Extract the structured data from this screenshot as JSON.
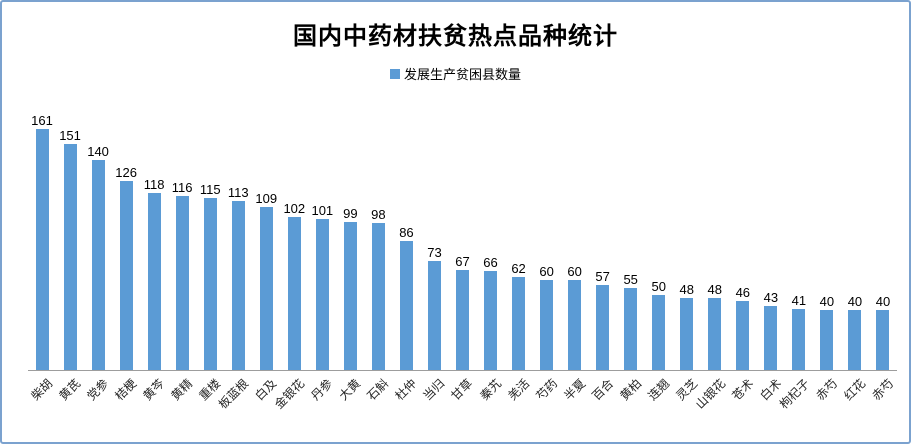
{
  "chart_data": {
    "type": "bar",
    "title": "国内中药材扶贫热点品种统计",
    "legend": [
      {
        "label": "发展生产贫困县数量",
        "color": "#5b9bd5"
      }
    ],
    "legend_position": "top-center",
    "categories": [
      "柴胡",
      "黄芪",
      "党参",
      "桔梗",
      "黄芩",
      "黄精",
      "重楼",
      "板蓝根",
      "白及",
      "金银花",
      "丹参",
      "大黄",
      "石斛",
      "杜仲",
      "当归",
      "甘草",
      "秦艽",
      "羌活",
      "芍药",
      "半夏",
      "百合",
      "黄柏",
      "连翘",
      "灵芝",
      "山银花",
      "苍术",
      "白术",
      "枸杞子",
      "赤芍",
      "红花",
      "赤芍"
    ],
    "values": [
      161,
      151,
      140,
      126,
      118,
      116,
      115,
      113,
      109,
      102,
      101,
      99,
      98,
      86,
      73,
      67,
      66,
      62,
      60,
      60,
      57,
      55,
      50,
      48,
      48,
      46,
      43,
      41,
      40,
      40,
      40
    ],
    "series_name": "发展生产贫困县数量",
    "xlabel": "",
    "ylabel": "",
    "ylim": [
      0,
      170
    ],
    "grid": false,
    "data_labels": true,
    "x_tick_rotation": 45,
    "bar_color": "#5b9bd5",
    "axis_line_color": "#9d9d9d",
    "frame_border_color": "#7ba2cf",
    "background_color": "#ffffff"
  }
}
